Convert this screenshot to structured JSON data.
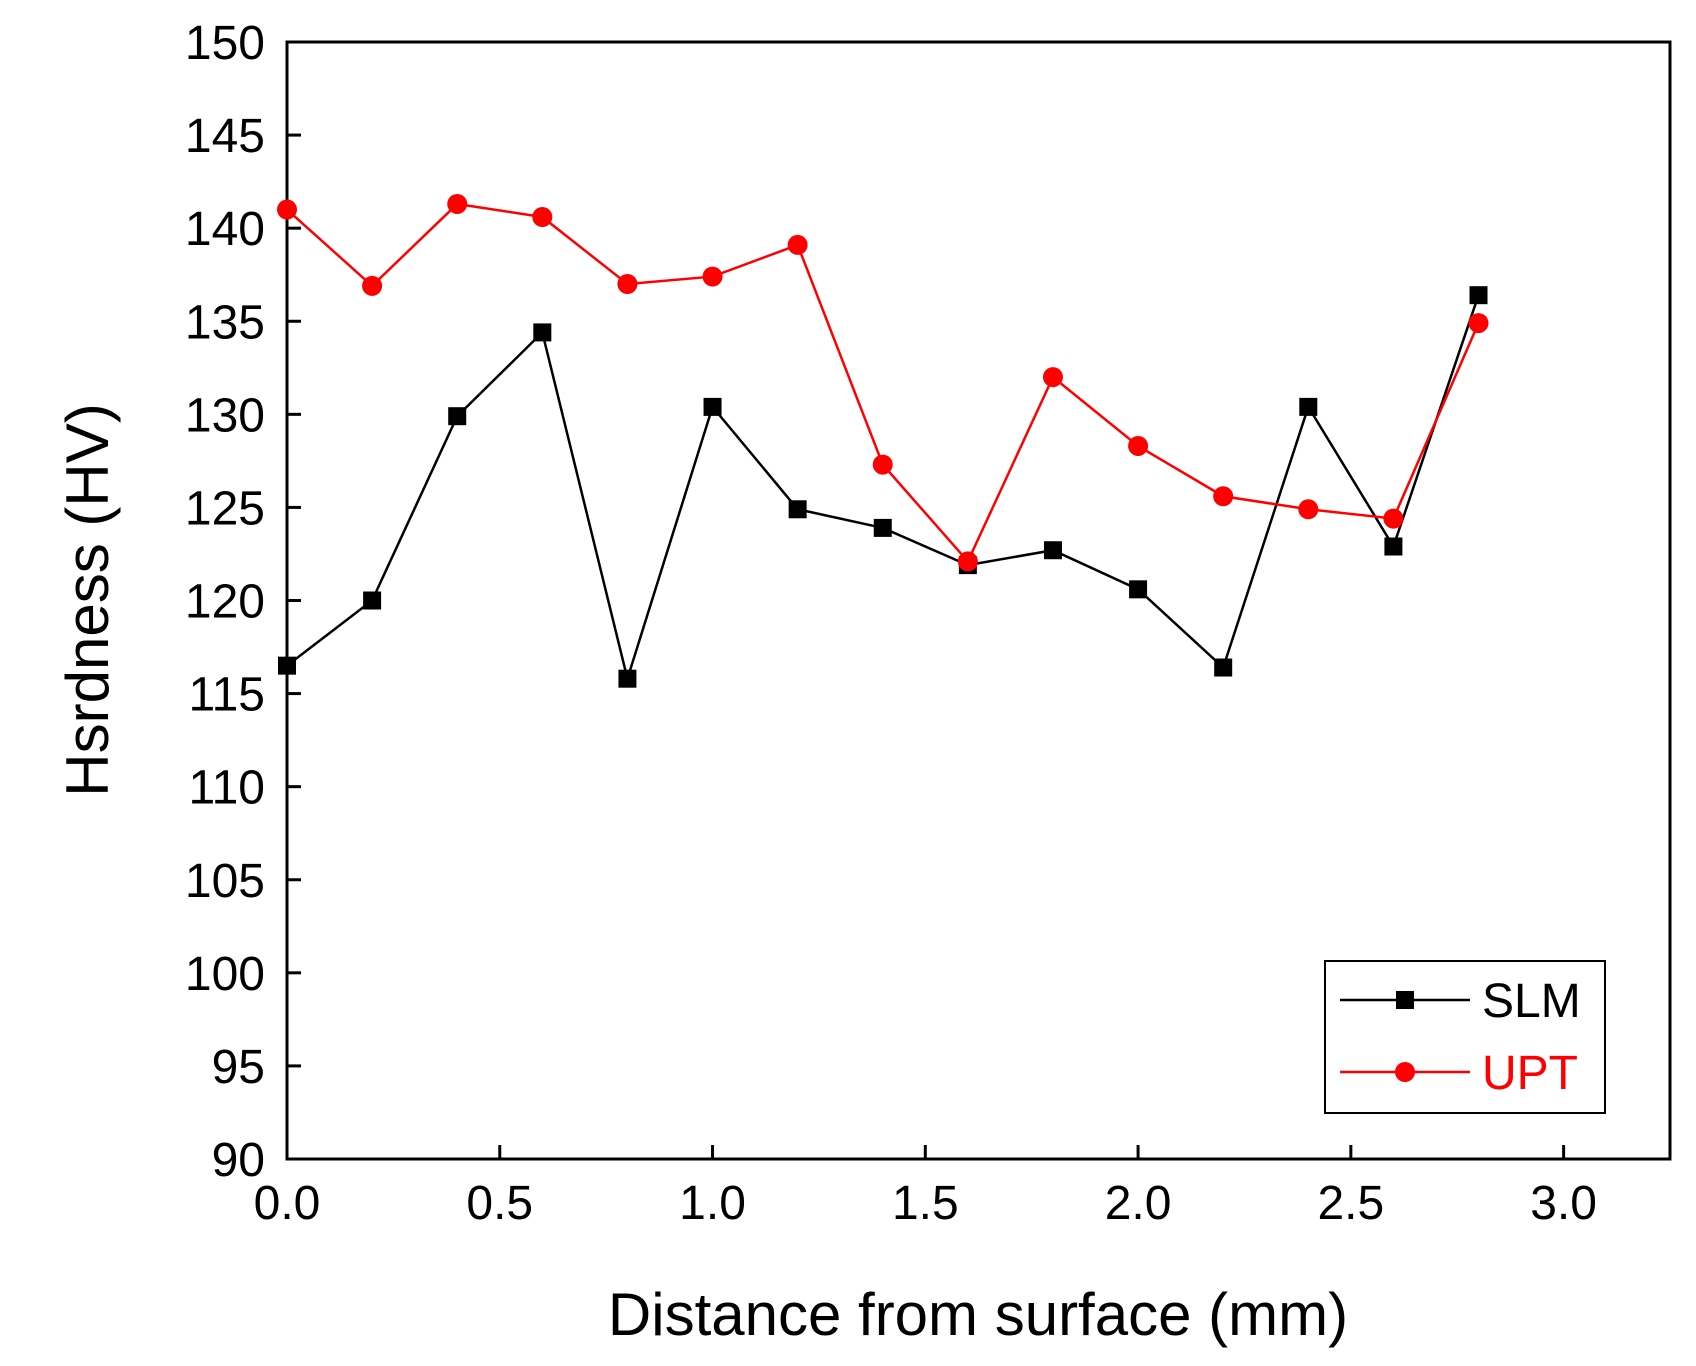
{
  "chart_data": {
    "type": "line",
    "title": "",
    "xlabel": "Distance from surface (mm)",
    "ylabel": "Hsrdness (HV)",
    "xlim": [
      0,
      3.25
    ],
    "ylim": [
      90,
      150
    ],
    "x_ticks": [
      0.0,
      0.5,
      1.0,
      1.5,
      2.0,
      2.5,
      3.0
    ],
    "x_tick_labels": [
      "0.0",
      "0.5",
      "1.0",
      "1.5",
      "2.0",
      "2.5",
      "3.0"
    ],
    "y_ticks": [
      90,
      95,
      100,
      105,
      110,
      115,
      120,
      125,
      130,
      135,
      140,
      145,
      150
    ],
    "y_tick_labels": [
      "90",
      "95",
      "100",
      "105",
      "110",
      "115",
      "120",
      "125",
      "130",
      "135",
      "140",
      "145",
      "150"
    ],
    "grid": false,
    "legend_position": "bottom-right",
    "series": [
      {
        "name": "SLM",
        "color": "#000000",
        "marker": "square",
        "x": [
          0.0,
          0.2,
          0.4,
          0.6,
          0.8,
          1.0,
          1.2,
          1.4,
          1.6,
          1.8,
          2.0,
          2.2,
          2.4,
          2.6,
          2.8
        ],
        "y": [
          116.5,
          120.0,
          129.9,
          134.4,
          115.8,
          130.4,
          124.9,
          123.9,
          121.9,
          122.7,
          120.6,
          116.4,
          130.4,
          122.9,
          136.4
        ]
      },
      {
        "name": "UPT",
        "color": "#ff0000",
        "marker": "circle",
        "x": [
          0.0,
          0.2,
          0.4,
          0.6,
          0.8,
          1.0,
          1.2,
          1.4,
          1.6,
          1.8,
          2.0,
          2.2,
          2.4,
          2.6,
          2.8
        ],
        "y": [
          141.0,
          136.9,
          141.3,
          140.6,
          137.0,
          137.4,
          139.1,
          127.3,
          122.1,
          132.0,
          128.3,
          125.6,
          124.9,
          124.4,
          134.9
        ]
      }
    ]
  }
}
